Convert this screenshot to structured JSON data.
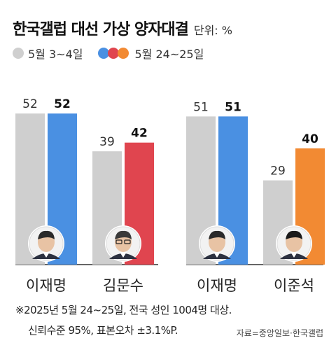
{
  "header": {
    "title": "한국갤럽 대선 가상 양자대결",
    "unit": "단위: %"
  },
  "legend": {
    "previous": "5월 3~4일",
    "current": "5월 24~25일"
  },
  "chart_data": [
    {
      "type": "bar",
      "categories": [
        "이재명",
        "김문수"
      ],
      "series": [
        {
          "name": "5월 3~4일",
          "values": [
            52,
            39
          ]
        },
        {
          "name": "5월 24~25일",
          "values": [
            52,
            42
          ]
        }
      ],
      "ylim": [
        0,
        60
      ]
    },
    {
      "type": "bar",
      "categories": [
        "이재명",
        "이준석"
      ],
      "series": [
        {
          "name": "5월 3~4일",
          "values": [
            51,
            29
          ]
        },
        {
          "name": "5월 24~25일",
          "values": [
            51,
            40
          ]
        }
      ],
      "ylim": [
        0,
        60
      ]
    }
  ],
  "colors": {
    "previous": "#cfcfcf",
    "lee_jaemyung": "#4a90e2",
    "kim_moonsoo": "#e0454f",
    "lee_junseok": "#f28a33",
    "axis": "#333333"
  },
  "footnote": {
    "line1": "※2025년 5월 24~25일, 전국 성인 1004명 대상.",
    "line2": "신뢰수준 95%, 표본오차 ±3.1%P.",
    "source": "자료=중앙일보·한국갤럽"
  }
}
